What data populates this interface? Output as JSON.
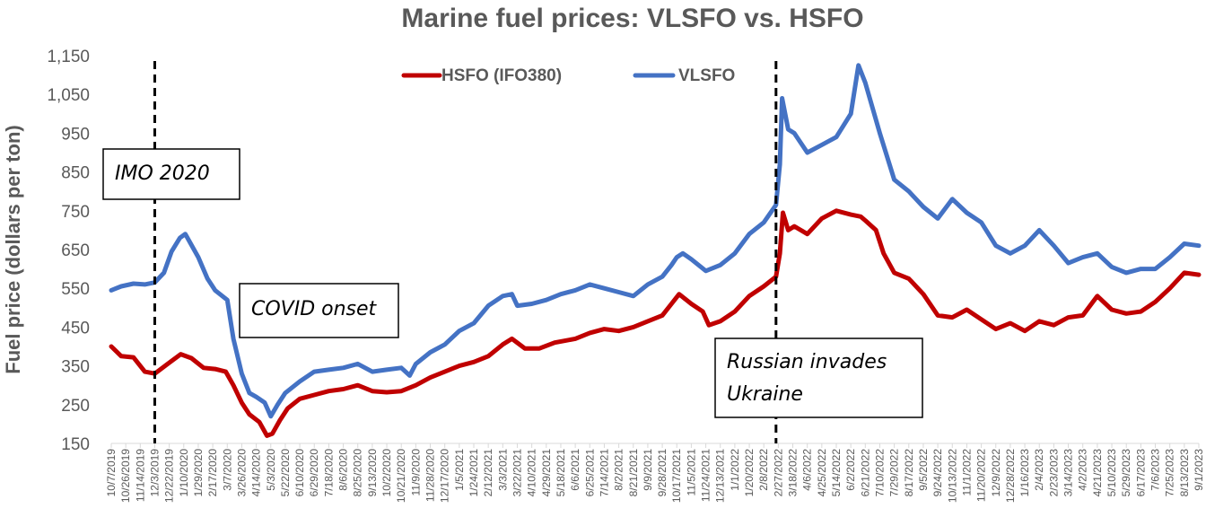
{
  "chart_data": {
    "type": "line",
    "title": "Marine fuel prices: VLSFO vs. HSFO",
    "ylabel": "Fuel price  (dollars per ton)",
    "xlabel": "",
    "ylim": [
      150,
      1150
    ],
    "y_ticks": [
      "150",
      "250",
      "350",
      "450",
      "550",
      "650",
      "750",
      "850",
      "950",
      "1,050",
      "1,150"
    ],
    "x_start": "2019-10-07",
    "x_end": "2023-09-01",
    "x_tick_labels": [
      "10/7/2019",
      "10/26/2019",
      "11/14/2019",
      "12/3/2019",
      "12/22/2019",
      "1/10/2020",
      "1/29/2020",
      "2/17/2020",
      "3/7/2020",
      "3/26/2020",
      "4/14/2020",
      "5/3/2020",
      "5/22/2020",
      "6/10/2020",
      "6/29/2020",
      "7/18/2020",
      "8/6/2020",
      "8/25/2020",
      "9/13/2020",
      "10/2/2020",
      "10/21/2020",
      "11/9/2020",
      "11/28/2020",
      "12/17/2020",
      "1/5/2021",
      "1/24/2021",
      "2/12/2021",
      "3/3/2021",
      "3/22/2021",
      "4/10/2021",
      "4/29/2021",
      "5/18/2021",
      "6/6/2021",
      "6/25/2021",
      "7/14/2021",
      "8/2/2021",
      "8/21/2021",
      "9/9/2021",
      "9/28/2021",
      "10/17/2021",
      "11/5/2021",
      "11/24/2021",
      "12/13/2021",
      "1/1/2022",
      "1/20/2022",
      "2/8/2022",
      "2/27/2022",
      "3/18/2022",
      "4/6/2022",
      "4/25/2022",
      "5/14/2022",
      "6/2/2022",
      "6/21/2022",
      "7/10/2022",
      "7/29/2022",
      "8/17/2022",
      "9/5/2022",
      "9/24/2022",
      "10/13/2022",
      "11/1/2022",
      "11/20/2022",
      "12/9/2022",
      "12/28/2022",
      "1/16/2023",
      "2/4/2023",
      "2/23/2023",
      "3/14/2023",
      "4/2/2023",
      "4/21/2023",
      "5/10/2023",
      "5/29/2023",
      "6/17/2023",
      "7/6/2023",
      "7/25/2023",
      "8/13/2023",
      "9/1/2023"
    ],
    "legend": {
      "position": "top-center"
    },
    "grid": false,
    "series": [
      {
        "name": "HSFO (IFO380)",
        "color": "#C00000",
        "points": [
          [
            "2019-10-07",
            400
          ],
          [
            "2019-10-20",
            375
          ],
          [
            "2019-11-05",
            372
          ],
          [
            "2019-11-20",
            335
          ],
          [
            "2019-12-03",
            330
          ],
          [
            "2019-12-20",
            355
          ],
          [
            "2020-01-06",
            380
          ],
          [
            "2020-01-20",
            370
          ],
          [
            "2020-02-05",
            345
          ],
          [
            "2020-02-20",
            342
          ],
          [
            "2020-03-05",
            335
          ],
          [
            "2020-03-15",
            300
          ],
          [
            "2020-03-26",
            255
          ],
          [
            "2020-04-05",
            225
          ],
          [
            "2020-04-18",
            205
          ],
          [
            "2020-04-28",
            170
          ],
          [
            "2020-05-05",
            175
          ],
          [
            "2020-05-15",
            210
          ],
          [
            "2020-05-25",
            240
          ],
          [
            "2020-06-10",
            265
          ],
          [
            "2020-06-29",
            275
          ],
          [
            "2020-07-18",
            285
          ],
          [
            "2020-08-06",
            290
          ],
          [
            "2020-08-25",
            300
          ],
          [
            "2020-09-13",
            285
          ],
          [
            "2020-10-02",
            282
          ],
          [
            "2020-10-21",
            285
          ],
          [
            "2020-11-09",
            300
          ],
          [
            "2020-11-28",
            320
          ],
          [
            "2020-12-17",
            335
          ],
          [
            "2021-01-05",
            350
          ],
          [
            "2021-01-24",
            360
          ],
          [
            "2021-02-12",
            375
          ],
          [
            "2021-03-03",
            405
          ],
          [
            "2021-03-15",
            420
          ],
          [
            "2021-04-01",
            395
          ],
          [
            "2021-04-20",
            395
          ],
          [
            "2021-05-10",
            410
          ],
          [
            "2021-06-06",
            420
          ],
          [
            "2021-06-25",
            435
          ],
          [
            "2021-07-14",
            445
          ],
          [
            "2021-08-02",
            440
          ],
          [
            "2021-08-21",
            450
          ],
          [
            "2021-09-09",
            465
          ],
          [
            "2021-09-28",
            480
          ],
          [
            "2021-10-10",
            510
          ],
          [
            "2021-10-20",
            535
          ],
          [
            "2021-11-05",
            510
          ],
          [
            "2021-11-20",
            490
          ],
          [
            "2021-11-28",
            455
          ],
          [
            "2021-12-13",
            465
          ],
          [
            "2022-01-01",
            490
          ],
          [
            "2022-01-20",
            530
          ],
          [
            "2022-02-08",
            555
          ],
          [
            "2022-02-24",
            580
          ],
          [
            "2022-03-01",
            640
          ],
          [
            "2022-03-05",
            745
          ],
          [
            "2022-03-12",
            700
          ],
          [
            "2022-03-20",
            710
          ],
          [
            "2022-04-06",
            690
          ],
          [
            "2022-04-25",
            730
          ],
          [
            "2022-05-14",
            750
          ],
          [
            "2022-06-02",
            740
          ],
          [
            "2022-06-15",
            735
          ],
          [
            "2022-06-21",
            725
          ],
          [
            "2022-07-05",
            700
          ],
          [
            "2022-07-15",
            640
          ],
          [
            "2022-07-29",
            590
          ],
          [
            "2022-08-17",
            575
          ],
          [
            "2022-09-05",
            535
          ],
          [
            "2022-09-24",
            480
          ],
          [
            "2022-10-13",
            475
          ],
          [
            "2022-11-01",
            495
          ],
          [
            "2022-11-20",
            470
          ],
          [
            "2022-12-09",
            445
          ],
          [
            "2022-12-28",
            460
          ],
          [
            "2023-01-16",
            440
          ],
          [
            "2023-02-04",
            465
          ],
          [
            "2023-02-23",
            455
          ],
          [
            "2023-03-14",
            475
          ],
          [
            "2023-04-02",
            480
          ],
          [
            "2023-04-21",
            530
          ],
          [
            "2023-05-10",
            495
          ],
          [
            "2023-05-29",
            485
          ],
          [
            "2023-06-17",
            490
          ],
          [
            "2023-07-06",
            515
          ],
          [
            "2023-07-25",
            550
          ],
          [
            "2023-08-13",
            590
          ],
          [
            "2023-09-01",
            585
          ]
        ]
      },
      {
        "name": "VLSFO",
        "color": "#4472C4",
        "points": [
          [
            "2019-10-07",
            545
          ],
          [
            "2019-10-20",
            555
          ],
          [
            "2019-11-05",
            562
          ],
          [
            "2019-11-20",
            560
          ],
          [
            "2019-12-03",
            565
          ],
          [
            "2019-12-15",
            590
          ],
          [
            "2019-12-25",
            645
          ],
          [
            "2020-01-05",
            680
          ],
          [
            "2020-01-12",
            690
          ],
          [
            "2020-01-29",
            630
          ],
          [
            "2020-02-10",
            575
          ],
          [
            "2020-02-20",
            545
          ],
          [
            "2020-03-07",
            520
          ],
          [
            "2020-03-15",
            420
          ],
          [
            "2020-03-26",
            330
          ],
          [
            "2020-04-05",
            280
          ],
          [
            "2020-04-14",
            270
          ],
          [
            "2020-04-25",
            255
          ],
          [
            "2020-05-03",
            220
          ],
          [
            "2020-05-12",
            250
          ],
          [
            "2020-05-22",
            280
          ],
          [
            "2020-06-10",
            310
          ],
          [
            "2020-06-29",
            335
          ],
          [
            "2020-07-18",
            340
          ],
          [
            "2020-08-06",
            345
          ],
          [
            "2020-08-25",
            355
          ],
          [
            "2020-09-13",
            335
          ],
          [
            "2020-10-02",
            340
          ],
          [
            "2020-10-21",
            345
          ],
          [
            "2020-11-01",
            325
          ],
          [
            "2020-11-09",
            355
          ],
          [
            "2020-11-28",
            385
          ],
          [
            "2020-12-17",
            405
          ],
          [
            "2021-01-05",
            440
          ],
          [
            "2021-01-24",
            460
          ],
          [
            "2021-02-12",
            505
          ],
          [
            "2021-03-03",
            530
          ],
          [
            "2021-03-15",
            535
          ],
          [
            "2021-03-22",
            505
          ],
          [
            "2021-04-10",
            510
          ],
          [
            "2021-04-29",
            520
          ],
          [
            "2021-05-18",
            535
          ],
          [
            "2021-06-06",
            545
          ],
          [
            "2021-06-25",
            560
          ],
          [
            "2021-07-14",
            550
          ],
          [
            "2021-08-02",
            540
          ],
          [
            "2021-08-21",
            530
          ],
          [
            "2021-09-09",
            560
          ],
          [
            "2021-09-28",
            580
          ],
          [
            "2021-10-10",
            610
          ],
          [
            "2021-10-17",
            630
          ],
          [
            "2021-10-25",
            640
          ],
          [
            "2021-11-05",
            625
          ],
          [
            "2021-11-24",
            595
          ],
          [
            "2021-12-13",
            610
          ],
          [
            "2022-01-01",
            640
          ],
          [
            "2022-01-20",
            690
          ],
          [
            "2022-02-08",
            720
          ],
          [
            "2022-02-24",
            765
          ],
          [
            "2022-03-01",
            870
          ],
          [
            "2022-03-04",
            1040
          ],
          [
            "2022-03-12",
            960
          ],
          [
            "2022-03-20",
            950
          ],
          [
            "2022-04-06",
            900
          ],
          [
            "2022-04-25",
            920
          ],
          [
            "2022-05-14",
            940
          ],
          [
            "2022-06-02",
            1000
          ],
          [
            "2022-06-12",
            1125
          ],
          [
            "2022-06-21",
            1080
          ],
          [
            "2022-07-10",
            950
          ],
          [
            "2022-07-29",
            830
          ],
          [
            "2022-08-17",
            800
          ],
          [
            "2022-09-05",
            760
          ],
          [
            "2022-09-24",
            730
          ],
          [
            "2022-10-13",
            780
          ],
          [
            "2022-11-01",
            745
          ],
          [
            "2022-11-20",
            720
          ],
          [
            "2022-12-09",
            660
          ],
          [
            "2022-12-28",
            640
          ],
          [
            "2023-01-16",
            660
          ],
          [
            "2023-02-04",
            700
          ],
          [
            "2023-02-23",
            660
          ],
          [
            "2023-03-14",
            615
          ],
          [
            "2023-04-02",
            630
          ],
          [
            "2023-04-21",
            640
          ],
          [
            "2023-05-10",
            605
          ],
          [
            "2023-05-29",
            590
          ],
          [
            "2023-06-17",
            600
          ],
          [
            "2023-07-06",
            600
          ],
          [
            "2023-07-25",
            630
          ],
          [
            "2023-08-13",
            665
          ],
          [
            "2023-09-01",
            660
          ]
        ]
      }
    ],
    "annotations": [
      {
        "date": "2019-12-03",
        "lines": [
          "IMO 2020"
        ]
      },
      {
        "date": "2020-03-11",
        "lines": [
          "COVID onset"
        ]
      },
      {
        "date": "2022-02-24",
        "lines": [
          "Russian invades",
          "Ukraine"
        ]
      }
    ]
  }
}
